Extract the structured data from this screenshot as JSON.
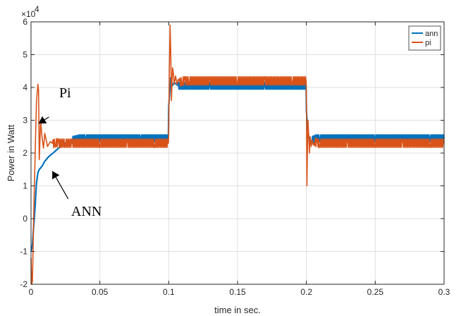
{
  "chart_data": {
    "type": "line",
    "title": "",
    "xlabel": "time in sec.",
    "ylabel": "Power in Watt",
    "y_exponent_label": "×10",
    "y_exponent_power": "4",
    "xlim": [
      0,
      0.3
    ],
    "ylim": [
      -2,
      6
    ],
    "x_ticks": [
      0,
      0.05,
      0.1,
      0.15,
      0.2,
      0.25,
      0.3
    ],
    "x_tick_labels": [
      "0",
      "0.05",
      "0.1",
      "0.15",
      "0.2",
      "0.25",
      "0.3"
    ],
    "y_ticks": [
      -2,
      -1,
      0,
      1,
      2,
      3,
      4,
      5,
      6
    ],
    "y_tick_labels": [
      "-2",
      "-1",
      "0",
      "1",
      "2",
      "3",
      "4",
      "5",
      "6"
    ],
    "grid": true,
    "legend_position": "top-right",
    "series": [
      {
        "name": "ann",
        "color": "#0072BD",
        "x": [
          0,
          0.001,
          0.002,
          0.003,
          0.004,
          0.005,
          0.006,
          0.008,
          0.01,
          0.013,
          0.016,
          0.02,
          0.025,
          0.03,
          0.035,
          0.04,
          0.06,
          0.08,
          0.0998,
          0.1,
          0.1008,
          0.1015,
          0.1025,
          0.104,
          0.107,
          0.11,
          0.13,
          0.15,
          0.17,
          0.19,
          0.1998,
          0.2,
          0.2008,
          0.2015,
          0.2025,
          0.204,
          0.207,
          0.21,
          0.23,
          0.25,
          0.27,
          0.29,
          0.3
        ],
        "y": [
          -1.0,
          -0.8,
          -0.2,
          0.4,
          1.1,
          1.4,
          1.5,
          1.6,
          1.75,
          1.9,
          2.0,
          2.15,
          2.3,
          2.4,
          2.45,
          2.45,
          2.45,
          2.45,
          2.45,
          3.4,
          3.9,
          4.3,
          4.05,
          4.15,
          4.05,
          4.05,
          4.05,
          4.05,
          4.05,
          4.05,
          4.05,
          3.3,
          2.8,
          2.55,
          2.3,
          2.4,
          2.45,
          2.45,
          2.45,
          2.45,
          2.45,
          2.45,
          2.45
        ],
        "ripple": 0.1
      },
      {
        "name": "pi",
        "color": "#D95319",
        "x": [
          0,
          0.0005,
          0.001,
          0.0015,
          0.002,
          0.003,
          0.004,
          0.005,
          0.0055,
          0.006,
          0.007,
          0.008,
          0.009,
          0.01,
          0.011,
          0.012,
          0.014,
          0.016,
          0.018,
          0.02,
          0.025,
          0.03,
          0.05,
          0.07,
          0.09,
          0.0998,
          0.1,
          0.1005,
          0.101,
          0.1015,
          0.102,
          0.1028,
          0.1035,
          0.104,
          0.105,
          0.106,
          0.107,
          0.108,
          0.11,
          0.112,
          0.115,
          0.13,
          0.15,
          0.17,
          0.19,
          0.1998,
          0.2,
          0.2004,
          0.2008,
          0.2012,
          0.2016,
          0.2022,
          0.2028,
          0.2035,
          0.2042,
          0.205,
          0.206,
          0.208,
          0.21,
          0.23,
          0.25,
          0.27,
          0.29,
          0.3
        ],
        "y": [
          -1.2,
          -2.0,
          -1.9,
          -1.0,
          0.2,
          2.0,
          3.6,
          4.1,
          3.9,
          1.8,
          3.0,
          2.5,
          2.15,
          2.6,
          2.4,
          2.2,
          2.35,
          2.28,
          2.32,
          2.3,
          2.3,
          2.3,
          2.3,
          2.3,
          2.3,
          2.3,
          2.6,
          4.6,
          5.9,
          5.0,
          3.6,
          4.6,
          4.4,
          4.1,
          4.35,
          4.1,
          4.25,
          4.15,
          4.2,
          4.2,
          4.2,
          4.2,
          4.2,
          4.2,
          4.2,
          4.2,
          3.6,
          1.0,
          2.2,
          3.0,
          2.6,
          2.0,
          2.5,
          2.2,
          2.4,
          2.25,
          2.35,
          2.3,
          2.3,
          2.3,
          2.3,
          2.3,
          2.3,
          2.3
        ],
        "ripple": 0.13
      }
    ],
    "annotations": [
      {
        "text": "Pi",
        "arrow_from": [
          0.013,
          3.1
        ],
        "arrow_to": [
          0.0055,
          2.9
        ]
      },
      {
        "text": "ANN",
        "arrow_from": [
          0.027,
          0.6
        ],
        "arrow_to": [
          0.0155,
          1.45
        ]
      }
    ]
  }
}
